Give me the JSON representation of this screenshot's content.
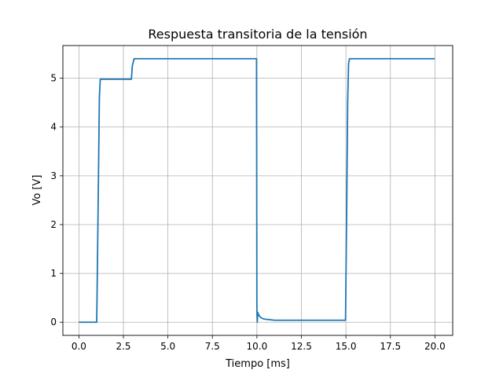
{
  "chart_data": {
    "type": "line",
    "title": "Respuesta transitoria de la tensión",
    "xlabel": "Tiempo [ms]",
    "ylabel": "Vo [V]",
    "xlim": [
      -0.9,
      21.0
    ],
    "ylim": [
      -0.27,
      5.67
    ],
    "xticks": [
      0,
      2.5,
      5,
      7.5,
      10,
      12.5,
      15,
      17.5,
      20
    ],
    "xtick_labels": [
      "0.0",
      "2.5",
      "5.0",
      "7.5",
      "10.0",
      "12.5",
      "15.0",
      "17.5",
      "20.0"
    ],
    "yticks": [
      0,
      1,
      2,
      3,
      4,
      5
    ],
    "ytick_labels": [
      "0",
      "1",
      "2",
      "3",
      "4",
      "5"
    ],
    "grid": true,
    "line_color": "#1f77b4",
    "series": [
      {
        "x": [
          0,
          1.0,
          1.02,
          1.1,
          1.15,
          1.2,
          1.3,
          2.5,
          2.95,
          3.0,
          3.1,
          3.3,
          5.0,
          7.5,
          9.98,
          10.0,
          10.02,
          10.05,
          10.1,
          10.2,
          10.35,
          10.5,
          10.75,
          11.0,
          11.5,
          12.0,
          12.5,
          13.0,
          14.0,
          14.98,
          15.0,
          15.05,
          15.1,
          15.15,
          15.2,
          15.3,
          16.0,
          17.5,
          20.0
        ],
        "y": [
          0,
          0,
          0.5,
          3.0,
          4.6,
          4.98,
          4.98,
          4.98,
          4.98,
          5.25,
          5.4,
          5.4,
          5.4,
          5.4,
          5.4,
          0.25,
          0.0,
          0.2,
          0.15,
          0.1,
          0.07,
          0.06,
          0.05,
          0.04,
          0.04,
          0.04,
          0.04,
          0.04,
          0.04,
          0.04,
          0.8,
          2.5,
          4.5,
          5.3,
          5.4,
          5.4,
          5.4,
          5.4,
          5.4
        ]
      }
    ]
  }
}
